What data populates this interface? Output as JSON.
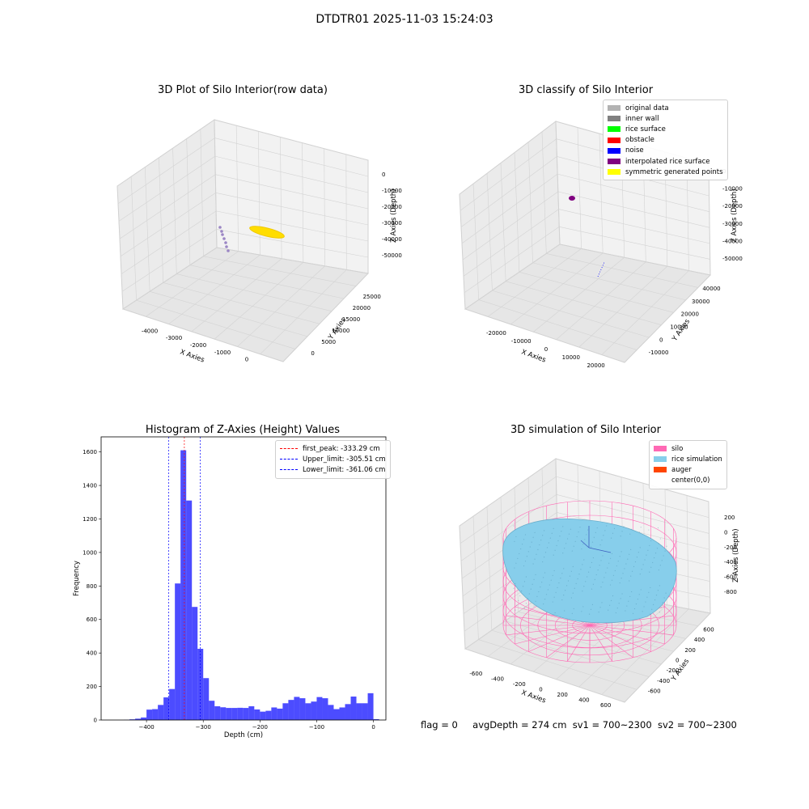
{
  "suptitle": "DTDTR01 2025-11-03 15:24:03",
  "panel1": {
    "title": "3D Plot of Silo Interior(row data)",
    "x_label": "X Axies",
    "y_label": "Y Axies",
    "z_label": "Z Axies (Depth)",
    "x_ticks": [
      "-4000",
      "-3000",
      "-2000",
      "-1000",
      "0"
    ],
    "y_ticks": [
      "0",
      "5000",
      "10000",
      "15000",
      "20000",
      "25000"
    ],
    "z_ticks": [
      "0",
      "-10000",
      "-20000",
      "-30000",
      "-40000",
      "-50000"
    ],
    "colors": {
      "points": "#9b86c4",
      "surface": "#ffdd00"
    }
  },
  "panel2": {
    "title": "3D classify of Silo Interior",
    "x_label": "X Axies",
    "y_label": "Y Axies",
    "z_label": "Z Axies (Depth)",
    "x_ticks": [
      "-20000",
      "-10000",
      "0",
      "10000",
      "20000"
    ],
    "y_ticks": [
      "-10000",
      "0",
      "10000",
      "20000",
      "30000",
      "40000"
    ],
    "z_ticks": [
      "0",
      "-10000",
      "-20000",
      "-30000",
      "-40000",
      "-50000"
    ],
    "legend": [
      {
        "label": "original data",
        "color": "#b3b3b3"
      },
      {
        "label": "inner wall",
        "color": "#808080"
      },
      {
        "label": "rice surface",
        "color": "#00ff00"
      },
      {
        "label": "obstacle",
        "color": "#ff0000"
      },
      {
        "label": "noise",
        "color": "#0000ff"
      },
      {
        "label": "interpolated rice surface",
        "color": "#800080"
      },
      {
        "label": "symmetric generated points",
        "color": "#ffff00"
      }
    ]
  },
  "chart_data": {
    "type": "bar",
    "title": "Histogram of Z-Axies (Height) Values",
    "xlabel": "Depth (cm)",
    "ylabel": "Frequency",
    "xlim": [
      -480,
      22
    ],
    "ylim": [
      0,
      1690
    ],
    "x_ticks": [
      -400,
      -300,
      -200,
      -100,
      0
    ],
    "y_ticks": [
      0,
      200,
      400,
      600,
      800,
      1000,
      1200,
      1400,
      1600
    ],
    "bar_color": "#0000ff",
    "bins": [
      {
        "x0": -480,
        "x1": -470,
        "value": 0
      },
      {
        "x0": -470,
        "x1": -460,
        "value": 0
      },
      {
        "x0": -460,
        "x1": -450,
        "value": 0
      },
      {
        "x0": -450,
        "x1": -440,
        "value": 0
      },
      {
        "x0": -440,
        "x1": -430,
        "value": 1
      },
      {
        "x0": -430,
        "x1": -420,
        "value": 4
      },
      {
        "x0": -420,
        "x1": -410,
        "value": 8
      },
      {
        "x0": -410,
        "x1": -400,
        "value": 15
      },
      {
        "x0": -400,
        "x1": -390,
        "value": 62
      },
      {
        "x0": -390,
        "x1": -380,
        "value": 65
      },
      {
        "x0": -380,
        "x1": -370,
        "value": 90
      },
      {
        "x0": -370,
        "x1": -360,
        "value": 135
      },
      {
        "x0": -360,
        "x1": -350,
        "value": 185
      },
      {
        "x0": -350,
        "x1": -340,
        "value": 815
      },
      {
        "x0": -340,
        "x1": -330,
        "value": 1610
      },
      {
        "x0": -330,
        "x1": -320,
        "value": 1310
      },
      {
        "x0": -320,
        "x1": -310,
        "value": 675
      },
      {
        "x0": -310,
        "x1": -300,
        "value": 425
      },
      {
        "x0": -300,
        "x1": -290,
        "value": 250
      },
      {
        "x0": -290,
        "x1": -280,
        "value": 115
      },
      {
        "x0": -280,
        "x1": -270,
        "value": 82
      },
      {
        "x0": -270,
        "x1": -260,
        "value": 76
      },
      {
        "x0": -260,
        "x1": -250,
        "value": 72
      },
      {
        "x0": -250,
        "x1": -240,
        "value": 72
      },
      {
        "x0": -240,
        "x1": -230,
        "value": 73
      },
      {
        "x0": -230,
        "x1": -220,
        "value": 72
      },
      {
        "x0": -220,
        "x1": -210,
        "value": 82
      },
      {
        "x0": -210,
        "x1": -200,
        "value": 63
      },
      {
        "x0": -200,
        "x1": -190,
        "value": 50
      },
      {
        "x0": -190,
        "x1": -180,
        "value": 55
      },
      {
        "x0": -180,
        "x1": -170,
        "value": 75
      },
      {
        "x0": -170,
        "x1": -160,
        "value": 68
      },
      {
        "x0": -160,
        "x1": -150,
        "value": 100
      },
      {
        "x0": -150,
        "x1": -140,
        "value": 120
      },
      {
        "x0": -140,
        "x1": -130,
        "value": 138
      },
      {
        "x0": -130,
        "x1": -120,
        "value": 130
      },
      {
        "x0": -120,
        "x1": -110,
        "value": 100
      },
      {
        "x0": -110,
        "x1": -100,
        "value": 110
      },
      {
        "x0": -100,
        "x1": -90,
        "value": 137
      },
      {
        "x0": -90,
        "x1": -80,
        "value": 130
      },
      {
        "x0": -80,
        "x1": -70,
        "value": 90
      },
      {
        "x0": -70,
        "x1": -60,
        "value": 65
      },
      {
        "x0": -60,
        "x1": -50,
        "value": 75
      },
      {
        "x0": -50,
        "x1": -40,
        "value": 95
      },
      {
        "x0": -40,
        "x1": -30,
        "value": 140
      },
      {
        "x0": -30,
        "x1": -20,
        "value": 100
      },
      {
        "x0": -20,
        "x1": -10,
        "value": 100
      },
      {
        "x0": -10,
        "x1": 0,
        "value": 160
      },
      {
        "x0": 0,
        "x1": 10,
        "value": 5
      }
    ],
    "vlines": [
      {
        "x": -333.29,
        "color": "#ff0000"
      },
      {
        "x": -305.51,
        "color": "#0000ff"
      },
      {
        "x": -361.06,
        "color": "#0000ff"
      }
    ],
    "legend": [
      {
        "label": "first_peak: -333.29 cm",
        "color": "#ff0000"
      },
      {
        "label": "Upper_limit: -305.51 cm",
        "color": "#0000ff"
      },
      {
        "label": "Lower_limit: -361.06 cm",
        "color": "#0000ff"
      }
    ]
  },
  "panel4": {
    "title": "3D simulation of Silo Interior",
    "x_label": "X Axies",
    "y_label": "Y Axies",
    "z_label": "Z Axies (Depth)",
    "x_ticks": [
      "-600",
      "-400",
      "-200",
      "0",
      "200",
      "400",
      "600"
    ],
    "y_ticks": [
      "-600",
      "-400",
      "-200",
      "0",
      "200",
      "400",
      "600"
    ],
    "z_ticks": [
      "200",
      "0",
      "-200",
      "-400",
      "-600",
      "-800"
    ],
    "legend": [
      {
        "label": "silo",
        "color": "#ff69b4"
      },
      {
        "label": "rice simulation",
        "color": "#87ceeb"
      },
      {
        "label": "auger",
        "color": "#ff4500"
      },
      {
        "label": "center(0,0)",
        "color": "#ffffff"
      }
    ]
  },
  "status": {
    "flag": "flag = 0",
    "avg_depth": "avgDepth = 274 cm",
    "sv1": "sv1 = 700~2300",
    "sv2": "sv2 = 700~2300"
  }
}
